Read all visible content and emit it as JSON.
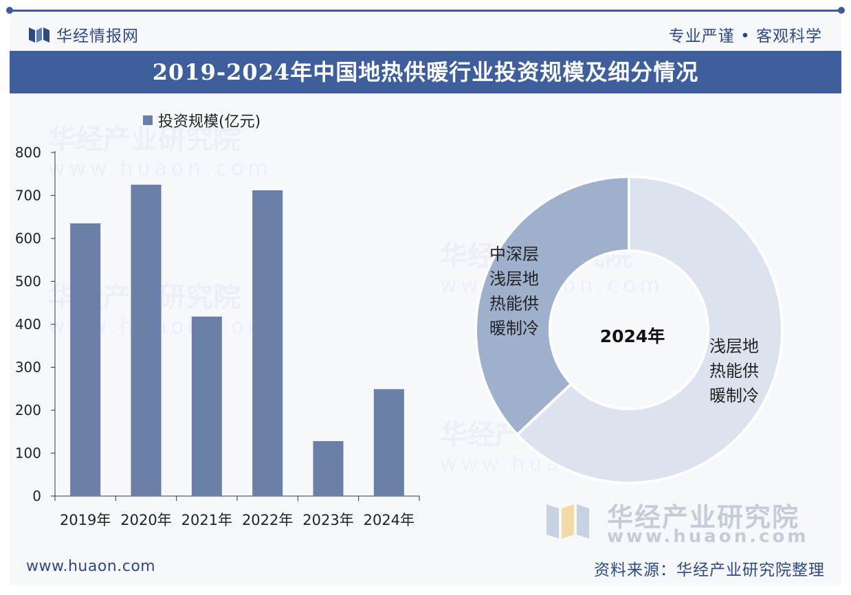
{
  "header": {
    "brand": "华经情报网",
    "tagline": "专业严谨 • 客观科学"
  },
  "title": "2019-2024年中国地热供暖行业投资规模及细分情况",
  "colors": {
    "bar": "#6a7fa7",
    "title_bg": "#3f5f9c",
    "donut_dark": "#9fb0cc",
    "donut_light": "#dde3ee"
  },
  "chart_data": [
    {
      "type": "bar",
      "legend": [
        "投资规模(亿元)"
      ],
      "legend_position": "top-left",
      "categories": [
        "2019年",
        "2020年",
        "2021年",
        "2022年",
        "2023年",
        "2024年"
      ],
      "series": [
        {
          "name": "投资规模(亿元)",
          "values": [
            635,
            725,
            418,
            712,
            128,
            249
          ]
        }
      ],
      "ylim": [
        0,
        800
      ],
      "yticks": [
        0,
        100,
        200,
        300,
        400,
        500,
        600,
        700,
        800
      ],
      "grid": false
    },
    {
      "type": "pie",
      "center_label": "2024年",
      "slices": [
        {
          "label": "浅层地热能供暖制冷",
          "value": 63
        },
        {
          "label": "中深层浅层地热能供暖制冷",
          "value": 37
        }
      ]
    }
  ],
  "slice_label_lines": [
    [
      "浅层地",
      "热能供",
      "暖制冷"
    ],
    [
      "中深层",
      "浅层地",
      "热能供",
      "暖制冷"
    ]
  ],
  "watermark": {
    "name": "华经产业研究院",
    "url": "www.huaon.com"
  },
  "footer": {
    "url": "www.huaon.com",
    "source": "资料来源：华经产业研究院整理"
  }
}
